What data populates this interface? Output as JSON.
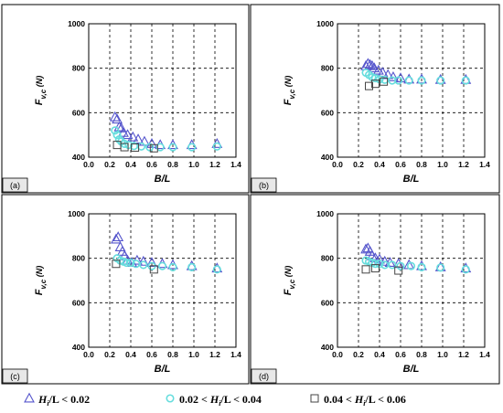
{
  "chart_data": [
    {
      "type": "scatter",
      "panel": "(a)",
      "xlabel": "B/L",
      "ylabel_main": "F",
      "ylabel_sub": "v,c",
      "ylabel_unit": "(N)",
      "xlim": [
        0.0,
        1.4
      ],
      "ylim": [
        400,
        1000
      ],
      "xticks": [
        "0.0",
        "0.2",
        "0.4",
        "0.6",
        "0.8",
        "1.0",
        "1.2",
        "1.4"
      ],
      "yticks": [
        "400",
        "600",
        "800",
        "1000"
      ],
      "grid": true,
      "series": [
        {
          "marker": "triangle",
          "color": "#5555cc",
          "points": [
            [
              0.25,
              580
            ],
            [
              0.27,
              570
            ],
            [
              0.29,
              535
            ],
            [
              0.31,
              530
            ],
            [
              0.33,
              510
            ],
            [
              0.37,
              500
            ],
            [
              0.42,
              490
            ],
            [
              0.47,
              480
            ],
            [
              0.53,
              470
            ],
            [
              0.6,
              460
            ],
            [
              0.68,
              455
            ],
            [
              0.8,
              455
            ],
            [
              0.98,
              455
            ],
            [
              1.22,
              460
            ]
          ]
        },
        {
          "marker": "circle",
          "color": "#66dddd",
          "points": [
            [
              0.25,
              520
            ],
            [
              0.27,
              500
            ],
            [
              0.29,
              480
            ],
            [
              0.31,
              470
            ],
            [
              0.34,
              460
            ],
            [
              0.38,
              455
            ],
            [
              0.43,
              450
            ],
            [
              0.5,
              448
            ],
            [
              0.58,
              445
            ],
            [
              0.68,
              445
            ],
            [
              0.8,
              445
            ],
            [
              0.98,
              445
            ],
            [
              1.22,
              448
            ]
          ]
        },
        {
          "marker": "square",
          "color": "#444444",
          "points": [
            [
              0.27,
              455
            ],
            [
              0.34,
              445
            ],
            [
              0.44,
              443
            ],
            [
              0.62,
              440
            ]
          ]
        }
      ]
    },
    {
      "type": "scatter",
      "panel": "(b)",
      "xlabel": "B/L",
      "ylabel_main": "F",
      "ylabel_sub": "v,c",
      "ylabel_unit": "(N)",
      "xlim": [
        0.0,
        1.4
      ],
      "ylim": [
        400,
        1000
      ],
      "xticks": [
        "0.0",
        "0.2",
        "0.4",
        "0.6",
        "0.8",
        "1.0",
        "1.2",
        "1.4"
      ],
      "yticks": [
        "400",
        "600",
        "800",
        "1000"
      ],
      "grid": true,
      "series": [
        {
          "marker": "triangle",
          "color": "#5555cc",
          "points": [
            [
              0.27,
              810
            ],
            [
              0.29,
              820
            ],
            [
              0.31,
              815
            ],
            [
              0.33,
              810
            ],
            [
              0.35,
              800
            ],
            [
              0.39,
              790
            ],
            [
              0.43,
              780
            ],
            [
              0.48,
              770
            ],
            [
              0.53,
              760
            ],
            [
              0.6,
              755
            ],
            [
              0.68,
              750
            ],
            [
              0.8,
              750
            ],
            [
              0.98,
              748
            ],
            [
              1.22,
              748
            ]
          ]
        },
        {
          "marker": "circle",
          "color": "#66dddd",
          "points": [
            [
              0.27,
              780
            ],
            [
              0.3,
              770
            ],
            [
              0.33,
              760
            ],
            [
              0.36,
              755
            ],
            [
              0.4,
              750
            ],
            [
              0.45,
              748
            ],
            [
              0.52,
              745
            ],
            [
              0.58,
              745
            ],
            [
              0.68,
              745
            ],
            [
              0.8,
              745
            ],
            [
              0.98,
              745
            ],
            [
              1.22,
              745
            ]
          ]
        },
        {
          "marker": "square",
          "color": "#444444",
          "points": [
            [
              0.3,
              720
            ],
            [
              0.36,
              730
            ],
            [
              0.44,
              740
            ]
          ]
        }
      ]
    },
    {
      "type": "scatter",
      "panel": "(c)",
      "xlabel": "B/L",
      "ylabel_main": "F",
      "ylabel_sub": "v,c",
      "ylabel_unit": "(N)",
      "xlim": [
        0.0,
        1.4
      ],
      "ylim": [
        400,
        1000
      ],
      "xticks": [
        "0.0",
        "0.2",
        "0.4",
        "0.6",
        "0.8",
        "1.0",
        "1.2",
        "1.4"
      ],
      "yticks": [
        "400",
        "600",
        "800",
        "1000"
      ],
      "grid": true,
      "series": [
        {
          "marker": "triangle",
          "color": "#5555cc",
          "points": [
            [
              0.26,
              885
            ],
            [
              0.28,
              895
            ],
            [
              0.3,
              850
            ],
            [
              0.32,
              830
            ],
            [
              0.34,
              810
            ],
            [
              0.37,
              790
            ],
            [
              0.41,
              780
            ],
            [
              0.46,
              790
            ],
            [
              0.52,
              785
            ],
            [
              0.6,
              780
            ],
            [
              0.7,
              775
            ],
            [
              0.8,
              770
            ],
            [
              0.98,
              765
            ],
            [
              1.22,
              755
            ]
          ]
        },
        {
          "marker": "circle",
          "color": "#66dddd",
          "points": [
            [
              0.27,
              800
            ],
            [
              0.3,
              790
            ],
            [
              0.33,
              785
            ],
            [
              0.36,
              780
            ],
            [
              0.4,
              780
            ],
            [
              0.45,
              775
            ],
            [
              0.52,
              770
            ],
            [
              0.6,
              765
            ],
            [
              0.7,
              765
            ],
            [
              0.8,
              760
            ],
            [
              0.98,
              760
            ],
            [
              1.22,
              750
            ]
          ]
        },
        {
          "marker": "square",
          "color": "#444444",
          "points": [
            [
              0.26,
              775
            ],
            [
              0.62,
              750
            ]
          ]
        }
      ]
    },
    {
      "type": "scatter",
      "panel": "(d)",
      "xlabel": "B/L",
      "ylabel_main": "F",
      "ylabel_sub": "v,c",
      "ylabel_unit": "(N)",
      "xlim": [
        0.0,
        1.4
      ],
      "ylim": [
        400,
        1000
      ],
      "xticks": [
        "0.0",
        "0.2",
        "0.4",
        "0.6",
        "0.8",
        "1.0",
        "1.2",
        "1.4"
      ],
      "yticks": [
        "400",
        "600",
        "800",
        "1000"
      ],
      "grid": true,
      "series": [
        {
          "marker": "triangle",
          "color": "#5555cc",
          "points": [
            [
              0.27,
              840
            ],
            [
              0.29,
              845
            ],
            [
              0.31,
              830
            ],
            [
              0.33,
              810
            ],
            [
              0.36,
              800
            ],
            [
              0.4,
              795
            ],
            [
              0.45,
              785
            ],
            [
              0.5,
              780
            ],
            [
              0.58,
              775
            ],
            [
              0.68,
              770
            ],
            [
              0.8,
              765
            ],
            [
              0.98,
              760
            ],
            [
              1.22,
              755
            ]
          ]
        },
        {
          "marker": "circle",
          "color": "#66dddd",
          "points": [
            [
              0.27,
              790
            ],
            [
              0.3,
              785
            ],
            [
              0.33,
              780
            ],
            [
              0.36,
              775
            ],
            [
              0.4,
              775
            ],
            [
              0.45,
              770
            ],
            [
              0.52,
              770
            ],
            [
              0.6,
              765
            ],
            [
              0.7,
              765
            ],
            [
              0.8,
              760
            ],
            [
              0.98,
              758
            ],
            [
              1.22,
              750
            ]
          ]
        },
        {
          "marker": "square",
          "color": "#444444",
          "points": [
            [
              0.27,
              750
            ],
            [
              0.36,
              755
            ],
            [
              0.58,
              745
            ]
          ]
        }
      ]
    }
  ],
  "legend": [
    {
      "marker": "triangle",
      "color": "#5555cc",
      "main": "H",
      "sub": "i",
      "rest": "/L < 0.02",
      "prefix": ""
    },
    {
      "marker": "circle",
      "color": "#66dddd",
      "main": "H",
      "sub": "i",
      "rest": "/L < 0.04",
      "prefix": "0.02 < "
    },
    {
      "marker": "square",
      "color": "#444444",
      "main": "H",
      "sub": "i",
      "rest": "/L < 0.06",
      "prefix": "0.04 < "
    }
  ]
}
